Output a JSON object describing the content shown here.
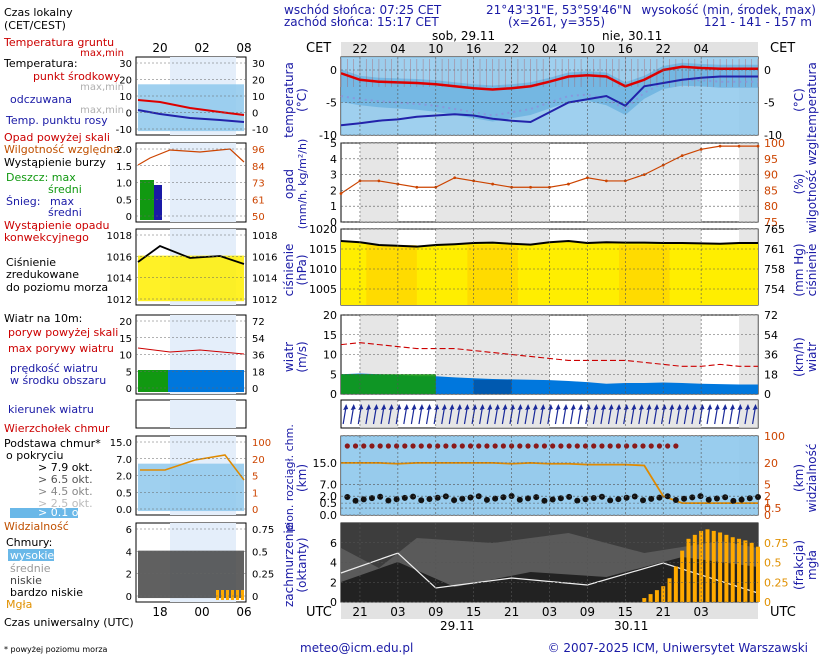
{
  "header": {
    "sunrise": "wschód słońca: 07:25 CET",
    "sunset": "zachód słońca: 15:17 CET",
    "coords": "21°43'31\"E, 53°59'46\"N",
    "grid": "(x=261,  y=355)",
    "height_label": "wysokość (min, środek, max)",
    "heights": "121 - 141 - 157 m"
  },
  "legend": {
    "local_time": "Czas lokalny",
    "local_time2": "(CET/CEST)",
    "soil_temp": "Temperatura gruntu",
    "max_min": "max,min",
    "temp": "Temperatura:",
    "mid_point": "punkt środkowy",
    "max_min2": "max,min",
    "felt": "odczuwana",
    "max_min3": "max,min",
    "dew": "Temp. punktu rosy",
    "precip_above": "Opad powyżej skali",
    "humidity": "Wilgotność względna",
    "storm": "Wystąpienie burzy",
    "rain": "Deszcz: max",
    "rain_avg": "średni",
    "snow": "Śnieg:",
    "snow_max": "max",
    "snow_avg": "średni",
    "conv": "Wystąpienie opadu",
    "conv2": "konwekcyjnego",
    "press1": "Ciśnienie",
    "press2": "zredukowane",
    "press3": "do poziomu morza",
    "wind_title": "Wiatr na 10m:",
    "gust_above": "poryw powyżej skali",
    "gust_max": "max porywy wiatru",
    "wind_speed": "prędkość wiatru",
    "wind_speed2": "w środku obszaru",
    "wind_dir": "kierunek wiatru",
    "whirl": "Wierzchołek chmur",
    "cloud_base": "Podstawa chmur*",
    "cloud_base2": "o pokryciu",
    "okt1": "> 7.9 okt.",
    "okt2": "> 6.5 okt.",
    "okt3": "> 4.5 okt.",
    "okt4": "> 2.5 okt.",
    "okt5": "> 0.1 okt.",
    "visibility": "Widzialność",
    "clouds": "Chmury:",
    "high": "wysokie",
    "medium": "średnie",
    "low": "niskie",
    "very_low": "bardzo niskie",
    "fog": "Mgła",
    "utc": "Czas uniwersalny (UTC)",
    "footnote": "* powyżej poziomu morza",
    "left_top_ticks": [
      "20",
      "02",
      "08"
    ],
    "left_bottom_ticks": [
      "18",
      "00",
      "06"
    ]
  },
  "axis_titles": {
    "temp_l": "temperatura",
    "temp_l2": "(°C)",
    "temp_r": "temperatura",
    "temp_r2": "(°C)",
    "precip_l": "opad",
    "precip_l2": "(mm/h, kg/m²/h)",
    "precip_r": "wilgotność wzgl.",
    "precip_r2": "(%)",
    "press_l": "ciśnienie",
    "press_l2": "(hPa)",
    "press_r": "ciśnienie",
    "press_r2": "(mm Hg)",
    "wind_l": "wiatr",
    "wind_l2": "(m/s)",
    "wind_r": "wiatr",
    "wind_r2": "(km/h)",
    "cloud_l": "pion. rozciągł. chm.",
    "cloud_l2": "(km)",
    "cloud_r": "widzialność",
    "cloud_r2": "(km)",
    "cover_l": "zachmurzenie",
    "cover_l2": "(oktanty)",
    "cover_r": "mgła",
    "cover_r2": "(frakcja)"
  },
  "footer": {
    "email": "meteo@icm.edu.pl",
    "copyright": "© 2007-2025 ICM, Uniwersytet Warszawski"
  },
  "time": {
    "cet_label": "CET",
    "utc_label": "UTC",
    "top_ticks": [
      "22",
      "04",
      "10",
      "16",
      "22",
      "04",
      "10",
      "16",
      "22",
      "04"
    ],
    "bottom_ticks": [
      "21",
      "03",
      "09",
      "15",
      "21",
      "03",
      "09",
      "15",
      "21",
      "03"
    ],
    "day1_top": "sob, 29.11",
    "day2_top": "nie, 30.11",
    "day1_bottom": "29.11",
    "day2_bottom": "30.11"
  },
  "colors": {
    "panel_blue": "#8ec8ec",
    "panel_blue_dark": "#5aa8dc",
    "grey_band": "#dcdcdc",
    "pressure_yellow": "#ffee00",
    "pressure_orange": "#ffcc00",
    "wind_blue": "#0077dd",
    "wind_green": "#119911",
    "fog_orange": "#ffaa00",
    "temp_red": "#dd0000",
    "dew_blue": "#2222aa",
    "humidity_orange": "#cc4400"
  },
  "chart_data": [
    {
      "type": "line",
      "title": "temperatura",
      "x_utc_hours": [
        18,
        21,
        24,
        27,
        30,
        33,
        36,
        39,
        42,
        45,
        48,
        51,
        54,
        57,
        60,
        63,
        66,
        69,
        72,
        75,
        78,
        81,
        84
      ],
      "series": [
        {
          "name": "punkt środkowy",
          "values": [
            -0.5,
            -1.5,
            -1.8,
            -1.9,
            -2.0,
            -2.2,
            -2.5,
            -2.8,
            -3.0,
            -2.8,
            -2.5,
            -1.8,
            -1.0,
            -0.8,
            -1.0,
            -2.5,
            -1.5,
            0.0,
            0.5,
            0.3,
            0.2,
            0.2,
            0.2
          ]
        },
        {
          "name": "odczuwana",
          "values": [
            -4.0,
            -4.5,
            -4.8,
            -5.0,
            -5.2,
            -5.5,
            -6.0,
            -6.5,
            -7.0,
            -6.5,
            -6.0,
            -5.0,
            -4.0,
            -3.8,
            -4.5,
            -6.0,
            -3.5,
            -2.0,
            -1.5,
            -1.6,
            -1.8,
            -1.8,
            -1.8
          ]
        },
        {
          "name": "Temp. punktu rosy",
          "values": [
            -8.5,
            -8.2,
            -7.8,
            -7.6,
            -7.2,
            -7.0,
            -6.8,
            -7.0,
            -7.5,
            -7.8,
            -8.0,
            -6.5,
            -5.0,
            -4.5,
            -4.0,
            -5.5,
            -2.5,
            -2.0,
            -1.5,
            -1.2,
            -1.0,
            -1.0,
            -1.0
          ]
        }
      ],
      "ylim": [
        -10,
        2
      ]
    },
    {
      "type": "line",
      "title": "wilgotność wzgl.",
      "x_utc_hours": [
        18,
        21,
        24,
        27,
        30,
        33,
        36,
        39,
        42,
        45,
        48,
        51,
        54,
        57,
        60,
        63,
        66,
        69,
        72,
        75,
        78,
        81,
        84
      ],
      "series": [
        {
          "name": "Wilgotność względna",
          "values": [
            84,
            88,
            88,
            87,
            86,
            86,
            89,
            88,
            87,
            86,
            86,
            86,
            87,
            89,
            88,
            88,
            90,
            93,
            96,
            98,
            99,
            99,
            99
          ]
        }
      ],
      "ylim": [
        75,
        100
      ]
    },
    {
      "type": "area",
      "title": "ciśnienie",
      "x_utc_hours": [
        18,
        21,
        24,
        27,
        30,
        33,
        36,
        39,
        42,
        45,
        48,
        51,
        54,
        57,
        60,
        63,
        66,
        69,
        72,
        75,
        78,
        81,
        84
      ],
      "series": [
        {
          "name": "Ciśnienie zredukowane do poziomu morza",
          "values": [
            1017.0,
            1016.7,
            1016.0,
            1015.8,
            1015.6,
            1016.0,
            1016.2,
            1016.5,
            1016.6,
            1016.3,
            1016.1,
            1016.7,
            1017.0,
            1016.5,
            1016.7,
            1016.6,
            1016.6,
            1016.5,
            1016.5,
            1016.4,
            1016.3,
            1016.5,
            1016.5
          ]
        }
      ],
      "ylim": [
        1001,
        1020
      ]
    },
    {
      "type": "area",
      "title": "wiatr",
      "x_utc_hours": [
        18,
        21,
        24,
        27,
        30,
        33,
        36,
        39,
        42,
        45,
        48,
        51,
        54,
        57,
        60,
        63,
        66,
        69,
        72,
        75,
        78,
        81,
        84
      ],
      "series": [
        {
          "name": "max porywy wiatru",
          "values": [
            12.5,
            13.0,
            12.5,
            12.0,
            11.5,
            11.5,
            11.5,
            11.0,
            10.5,
            10.0,
            9.5,
            9.0,
            8.5,
            8.5,
            8.5,
            8.5,
            8.0,
            7.5,
            7.0,
            7.0,
            7.5,
            7.0,
            7.0
          ]
        },
        {
          "name": "prędkość wiatru",
          "values": [
            5.0,
            5.2,
            5.0,
            4.8,
            4.5,
            4.5,
            4.2,
            4.0,
            3.8,
            3.7,
            3.6,
            3.5,
            3.3,
            3.0,
            2.6,
            2.8,
            2.8,
            2.9,
            2.8,
            2.6,
            2.5,
            2.4,
            2.4
          ]
        }
      ],
      "ylim": [
        0,
        20
      ]
    },
    {
      "type": "line",
      "title": "widzialność",
      "x_utc_hours": [
        18,
        21,
        24,
        27,
        30,
        33,
        36,
        39,
        42,
        45,
        48,
        51,
        54,
        57,
        60,
        63,
        66,
        69,
        72,
        75,
        78,
        81,
        84
      ],
      "series": [
        {
          "name": "Widzialność",
          "values": [
            20,
            20,
            20,
            19,
            20,
            20,
            20,
            20,
            20,
            19,
            20,
            19,
            19,
            18,
            18,
            18,
            17,
            2,
            1,
            1,
            1,
            1,
            1
          ]
        }
      ],
      "ylim": [
        0,
        100
      ]
    },
    {
      "type": "bar",
      "title": "mgła",
      "x_utc_hours": [
        66,
        67,
        68,
        69,
        70,
        71,
        72,
        73,
        74,
        75,
        76,
        77,
        78,
        79,
        80,
        81,
        82,
        83,
        84
      ],
      "series": [
        {
          "name": "Mgła",
          "values": [
            0.05,
            0.1,
            0.15,
            0.2,
            0.3,
            0.45,
            0.65,
            0.8,
            0.85,
            0.9,
            0.92,
            0.9,
            0.88,
            0.85,
            0.82,
            0.8,
            0.78,
            0.75,
            0.7
          ]
        }
      ],
      "ylim": [
        0,
        1
      ]
    }
  ]
}
